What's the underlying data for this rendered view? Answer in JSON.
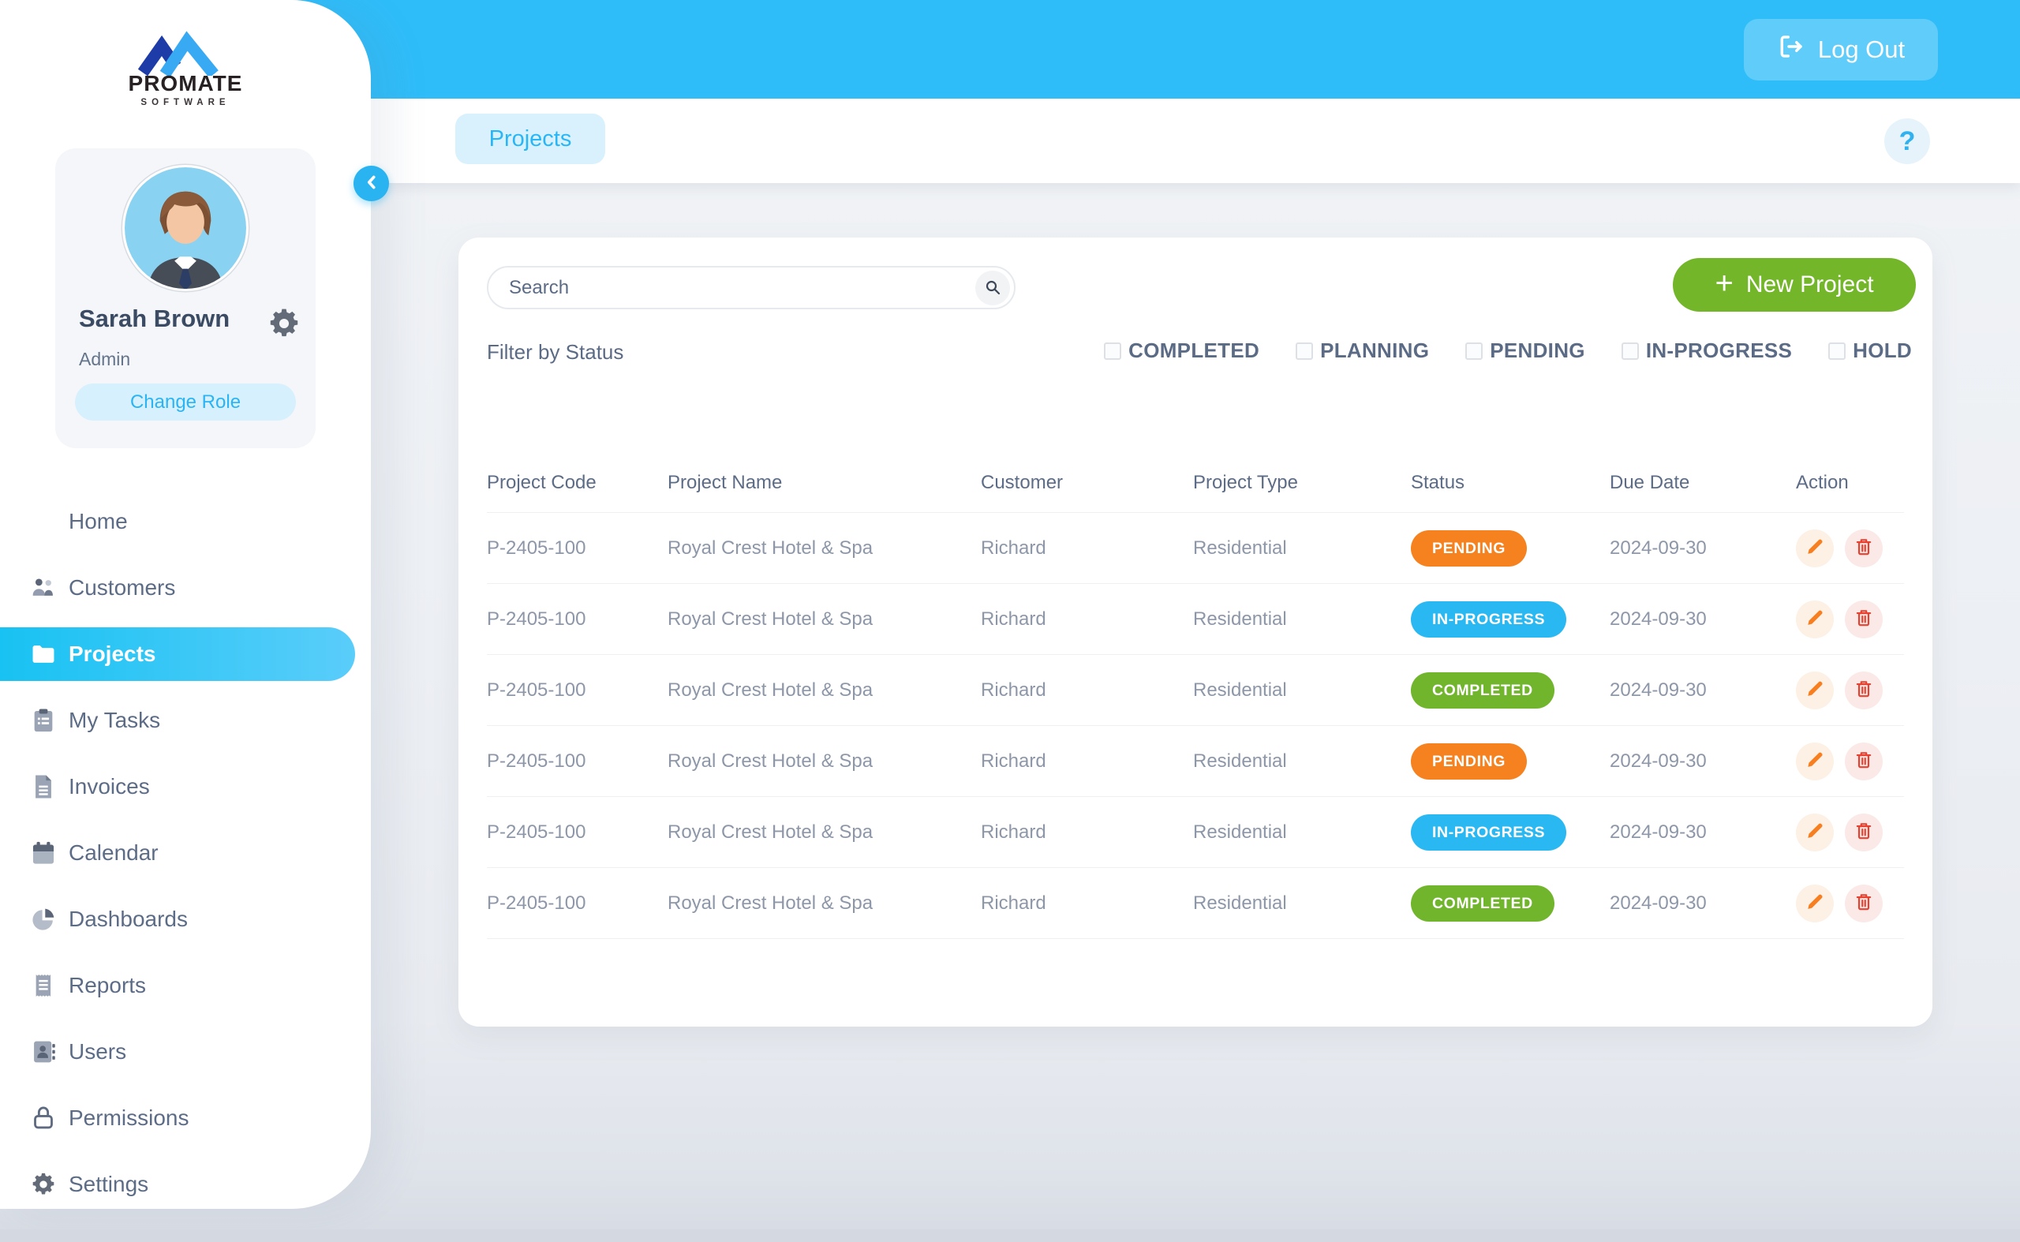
{
  "brand": {
    "title": "PROMATE",
    "subtitle": "SOFTWARE"
  },
  "topbar": {
    "logout": "Log Out"
  },
  "header": {
    "tab": "Projects",
    "help": "?"
  },
  "profile": {
    "name": "Sarah Brown",
    "role": "Admin",
    "change_role": "Change Role"
  },
  "sidebar": {
    "items": [
      {
        "label": "Home",
        "icon": "none",
        "active": false
      },
      {
        "label": "Customers",
        "icon": "people",
        "active": false
      },
      {
        "label": "Projects",
        "icon": "folder",
        "active": true
      },
      {
        "label": "My Tasks",
        "icon": "clipboard",
        "active": false
      },
      {
        "label": "Invoices",
        "icon": "document",
        "active": false
      },
      {
        "label": "Calendar",
        "icon": "calendar",
        "active": false
      },
      {
        "label": "Dashboards",
        "icon": "pie-chart",
        "active": false
      },
      {
        "label": "Reports",
        "icon": "receipt",
        "active": false
      },
      {
        "label": "Users",
        "icon": "id-card",
        "active": false
      },
      {
        "label": "Permissions",
        "icon": "lock",
        "active": false
      },
      {
        "label": "Settings",
        "icon": "gear",
        "active": false
      }
    ]
  },
  "content": {
    "search_placeholder": "Search",
    "new_project": "New Project",
    "plus": "+",
    "filter_label": "Filter by Status",
    "status_filters": [
      "COMPLETED",
      "PLANNING",
      "PENDING",
      "IN-PROGRESS",
      "HOLD"
    ],
    "table": {
      "columns": [
        "Project Code",
        "Project Name",
        "Customer",
        "Project Type",
        "Status",
        "Due Date",
        "Action"
      ],
      "rows": [
        {
          "code": "P-2405-100",
          "name": "Royal Crest Hotel & Spa",
          "customer": "Richard",
          "type": "Residential",
          "status": "PENDING",
          "due_date": "2024-09-30"
        },
        {
          "code": "P-2405-100",
          "name": "Royal Crest Hotel & Spa",
          "customer": "Richard",
          "type": "Residential",
          "status": "IN-PROGRESS",
          "due_date": "2024-09-30"
        },
        {
          "code": "P-2405-100",
          "name": "Royal Crest Hotel & Spa",
          "customer": "Richard",
          "type": "Residential",
          "status": "COMPLETED",
          "due_date": "2024-09-30"
        },
        {
          "code": "P-2405-100",
          "name": "Royal Crest Hotel & Spa",
          "customer": "Richard",
          "type": "Residential",
          "status": "PENDING",
          "due_date": "2024-09-30"
        },
        {
          "code": "P-2405-100",
          "name": "Royal Crest Hotel & Spa",
          "customer": "Richard",
          "type": "Residential",
          "status": "IN-PROGRESS",
          "due_date": "2024-09-30"
        },
        {
          "code": "P-2405-100",
          "name": "Royal Crest Hotel & Spa",
          "customer": "Richard",
          "type": "Residential",
          "status": "COMPLETED",
          "due_date": "2024-09-30"
        }
      ]
    }
  },
  "colors": {
    "topbar": "#2fbdf9",
    "accent_cyan": "#29b6f6",
    "green": "#74b62a",
    "status": {
      "PENDING": "#f5821f",
      "IN-PROGRESS": "#29b8f2",
      "COMPLETED": "#70b52c"
    }
  }
}
